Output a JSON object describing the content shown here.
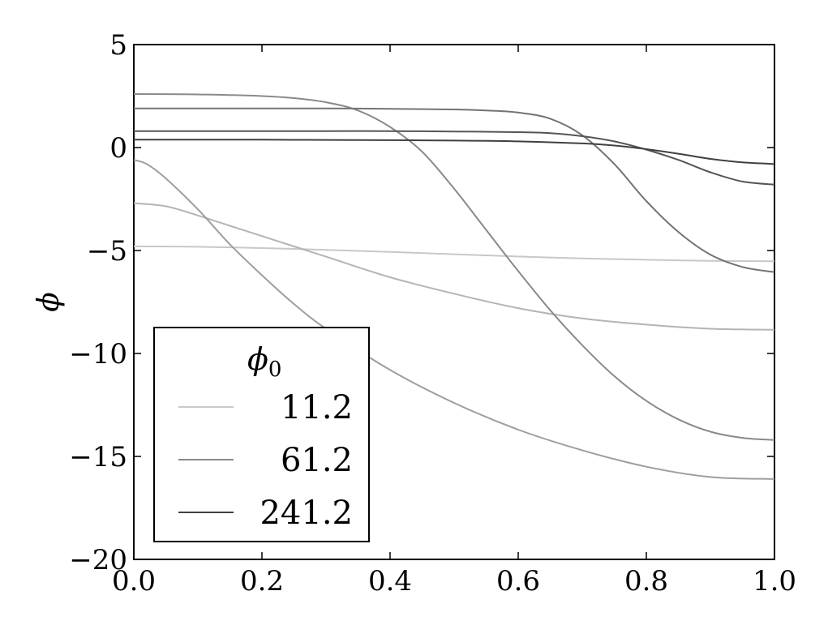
{
  "chart_data": {
    "type": "line",
    "title": "",
    "xlabel": "",
    "ylabel": "ϕ",
    "xlim": [
      0.0,
      1.0
    ],
    "ylim": [
      -20,
      5
    ],
    "xticks": [
      "0.0",
      "0.2",
      "0.4",
      "0.6",
      "0.8",
      "1.0"
    ],
    "yticks": [
      "5",
      "0",
      "−5",
      "−10",
      "−15",
      "−20"
    ],
    "grid": false,
    "legend": {
      "title": "ϕ",
      "title_subscript": "0",
      "placement": "lower-left",
      "entries": [
        {
          "label": "11.2",
          "color": "#c8c8c8"
        },
        {
          "label": "61.2",
          "color": "#8a8a8a"
        },
        {
          "label": "241.2",
          "color": "#404040"
        }
      ]
    },
    "series": [
      {
        "color": "#c8c8c8",
        "x": [
          0.0,
          0.1,
          0.2,
          0.3,
          0.4,
          0.5,
          0.6,
          0.7,
          0.8,
          0.9,
          1.0
        ],
        "y": [
          -4.8,
          -4.82,
          -4.88,
          -4.97,
          -5.07,
          -5.18,
          -5.29,
          -5.38,
          -5.45,
          -5.5,
          -5.52
        ]
      },
      {
        "color": "#b4b4b4",
        "x": [
          0.0,
          0.05,
          0.1,
          0.15,
          0.2,
          0.3,
          0.4,
          0.5,
          0.6,
          0.7,
          0.8,
          0.9,
          1.0
        ],
        "y": [
          -2.7,
          -2.85,
          -3.3,
          -3.8,
          -4.3,
          -5.3,
          -6.3,
          -7.1,
          -7.8,
          -8.3,
          -8.6,
          -8.8,
          -8.85
        ]
      },
      {
        "color": "#9e9e9e",
        "x": [
          0.0,
          0.02,
          0.05,
          0.1,
          0.15,
          0.2,
          0.25,
          0.3,
          0.4,
          0.5,
          0.6,
          0.7,
          0.8,
          0.9,
          1.0
        ],
        "y": [
          -0.6,
          -0.8,
          -1.5,
          -3.0,
          -4.7,
          -6.2,
          -7.6,
          -8.8,
          -10.8,
          -12.4,
          -13.7,
          -14.7,
          -15.5,
          -16.0,
          -16.1
        ]
      },
      {
        "color": "#8a8a8a",
        "x": [
          0.0,
          0.1,
          0.2,
          0.25,
          0.3,
          0.35,
          0.4,
          0.45,
          0.5,
          0.55,
          0.6,
          0.65,
          0.7,
          0.75,
          0.8,
          0.85,
          0.9,
          0.95,
          1.0
        ],
        "y": [
          2.6,
          2.58,
          2.5,
          2.4,
          2.2,
          1.8,
          1.0,
          -0.2,
          -2.0,
          -4.0,
          -6.0,
          -7.9,
          -9.6,
          -11.1,
          -12.3,
          -13.2,
          -13.8,
          -14.1,
          -14.2
        ]
      },
      {
        "color": "#737373",
        "x": [
          0.0,
          0.1,
          0.2,
          0.3,
          0.4,
          0.5,
          0.55,
          0.6,
          0.65,
          0.7,
          0.75,
          0.8,
          0.85,
          0.9,
          0.95,
          1.0
        ],
        "y": [
          1.9,
          1.9,
          1.9,
          1.9,
          1.88,
          1.85,
          1.8,
          1.7,
          1.4,
          0.6,
          -0.8,
          -2.6,
          -4.1,
          -5.2,
          -5.8,
          -6.05
        ]
      },
      {
        "color": "#555555",
        "x": [
          0.0,
          0.1,
          0.2,
          0.3,
          0.4,
          0.5,
          0.6,
          0.65,
          0.7,
          0.75,
          0.8,
          0.85,
          0.9,
          0.95,
          1.0
        ],
        "y": [
          0.8,
          0.8,
          0.8,
          0.8,
          0.8,
          0.78,
          0.75,
          0.7,
          0.55,
          0.3,
          -0.1,
          -0.6,
          -1.2,
          -1.65,
          -1.8
        ]
      },
      {
        "color": "#404040",
        "x": [
          0.0,
          0.1,
          0.2,
          0.3,
          0.4,
          0.5,
          0.6,
          0.7,
          0.75,
          0.8,
          0.85,
          0.9,
          0.95,
          1.0
        ],
        "y": [
          0.38,
          0.38,
          0.38,
          0.37,
          0.36,
          0.34,
          0.3,
          0.2,
          0.1,
          -0.08,
          -0.3,
          -0.55,
          -0.72,
          -0.8
        ]
      }
    ]
  }
}
